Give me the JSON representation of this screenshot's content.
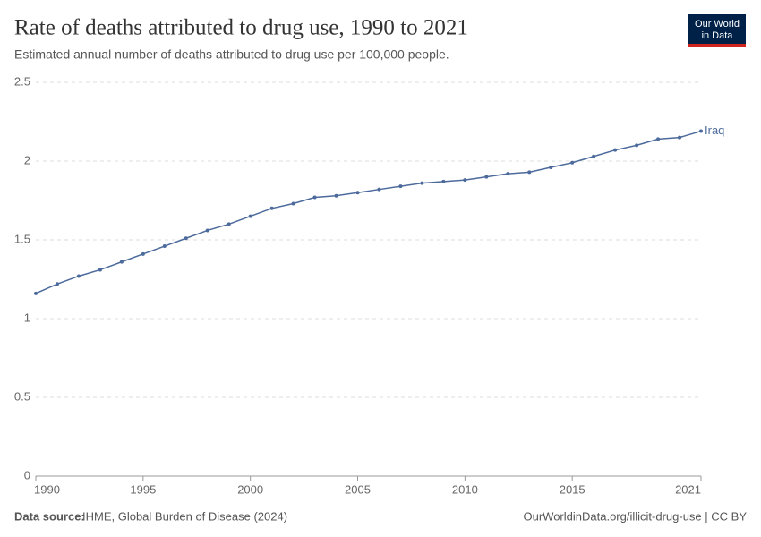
{
  "chart_data": {
    "type": "line",
    "title": "Rate of deaths attributed to drug use, 1990 to 2021",
    "subtitle": "Estimated annual number of deaths attributed to drug use per 100,000 people.",
    "logo": [
      "Our World",
      "in Data"
    ],
    "source_label": "Data source:",
    "source": "IHME, Global Burden of Disease (2024)",
    "url": "OurWorldinData.org/illicit-drug-use | CC BY",
    "x": [
      1990,
      1991,
      1992,
      1993,
      1994,
      1995,
      1996,
      1997,
      1998,
      1999,
      2000,
      2001,
      2002,
      2003,
      2004,
      2005,
      2006,
      2007,
      2008,
      2009,
      2010,
      2011,
      2012,
      2013,
      2014,
      2015,
      2016,
      2017,
      2018,
      2019,
      2020,
      2021
    ],
    "series": [
      {
        "name": "Iraq",
        "color": "#4c6a9c",
        "values": [
          1.16,
          1.22,
          1.27,
          1.31,
          1.36,
          1.41,
          1.46,
          1.51,
          1.56,
          1.6,
          1.65,
          1.7,
          1.73,
          1.77,
          1.78,
          1.8,
          1.82,
          1.84,
          1.86,
          1.87,
          1.88,
          1.9,
          1.92,
          1.93,
          1.96,
          1.99,
          2.03,
          2.07,
          2.1,
          2.14,
          2.15,
          2.19
        ]
      }
    ],
    "xlim": [
      1990,
      2021
    ],
    "xticks": [
      1990,
      1995,
      2000,
      2005,
      2010,
      2015,
      2021
    ],
    "ylim": [
      0,
      2.5
    ],
    "yticks": [
      0,
      0.5,
      1,
      1.5,
      2,
      2.5
    ],
    "grid": true
  }
}
